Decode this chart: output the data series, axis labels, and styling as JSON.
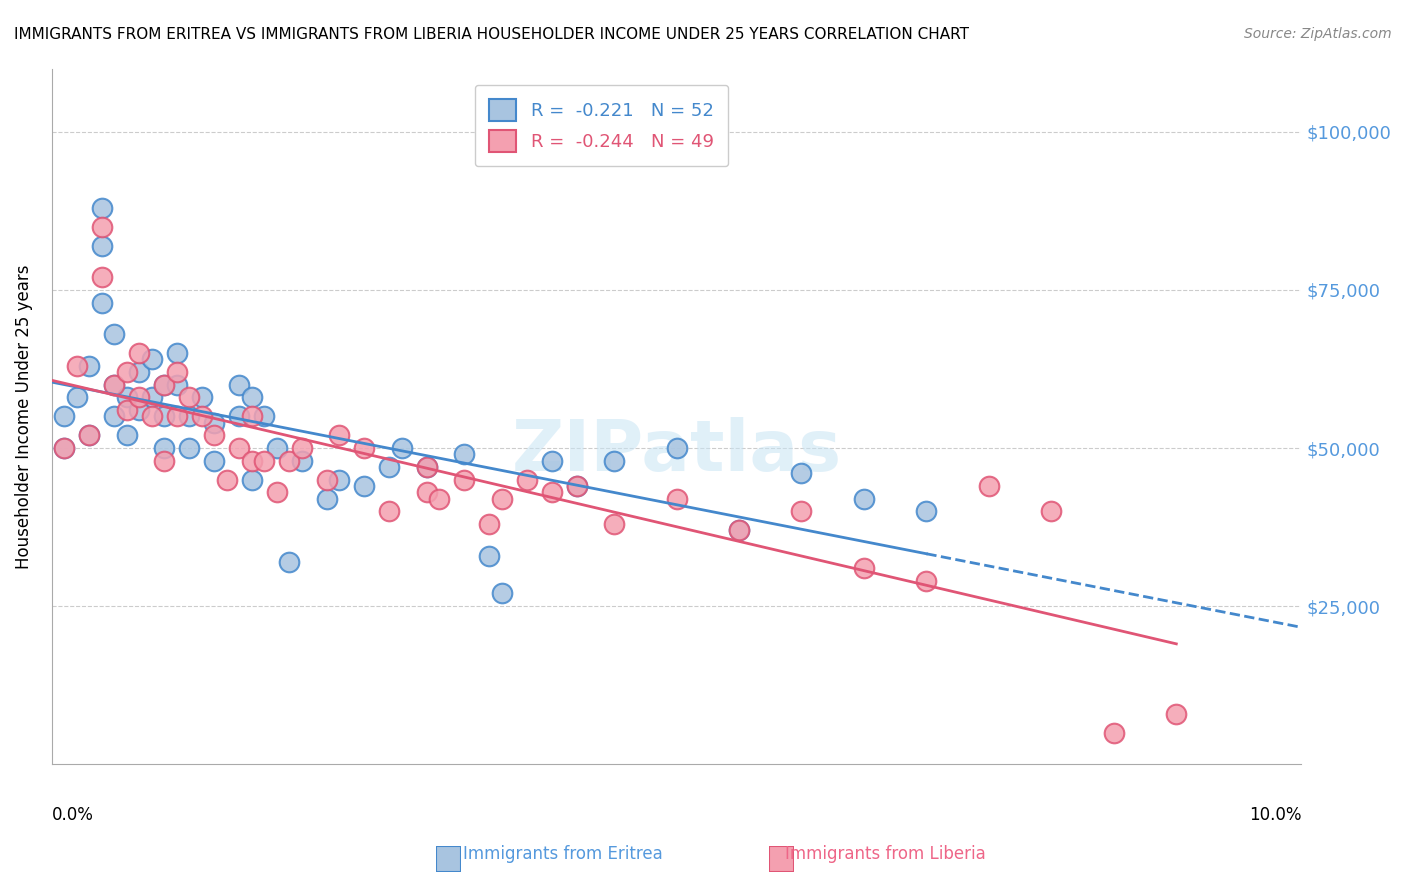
{
  "title": "IMMIGRANTS FROM ERITREA VS IMMIGRANTS FROM LIBERIA HOUSEHOLDER INCOME UNDER 25 YEARS CORRELATION CHART",
  "source": "Source: ZipAtlas.com",
  "ylabel": "Householder Income Under 25 years",
  "ytick_labels": [
    "$25,000",
    "$50,000",
    "$75,000",
    "$100,000"
  ],
  "ytick_values": [
    25000,
    50000,
    75000,
    100000
  ],
  "xlim": [
    0.0,
    0.1
  ],
  "ylim": [
    0,
    110000
  ],
  "legend_eritrea": "R =  -0.221   N = 52",
  "legend_liberia": "R =  -0.244   N = 49",
  "color_eritrea_fill": "#a8c4e0",
  "color_liberia_fill": "#f4a0b0",
  "color_eritrea_line": "#4488cc",
  "color_liberia_line": "#e05575",
  "watermark": "ZIPatlas",
  "eritrea_x": [
    0.001,
    0.001,
    0.002,
    0.003,
    0.003,
    0.004,
    0.004,
    0.004,
    0.005,
    0.005,
    0.005,
    0.006,
    0.006,
    0.007,
    0.007,
    0.008,
    0.008,
    0.009,
    0.009,
    0.009,
    0.01,
    0.01,
    0.011,
    0.011,
    0.012,
    0.013,
    0.013,
    0.015,
    0.015,
    0.016,
    0.016,
    0.017,
    0.018,
    0.019,
    0.02,
    0.022,
    0.023,
    0.025,
    0.027,
    0.028,
    0.03,
    0.033,
    0.035,
    0.036,
    0.04,
    0.042,
    0.045,
    0.05,
    0.055,
    0.06,
    0.065,
    0.07
  ],
  "eritrea_y": [
    55000,
    50000,
    58000,
    63000,
    52000,
    88000,
    82000,
    73000,
    68000,
    60000,
    55000,
    58000,
    52000,
    62000,
    56000,
    64000,
    58000,
    60000,
    55000,
    50000,
    65000,
    60000,
    55000,
    50000,
    58000,
    54000,
    48000,
    60000,
    55000,
    45000,
    58000,
    55000,
    50000,
    32000,
    48000,
    42000,
    45000,
    44000,
    47000,
    50000,
    47000,
    49000,
    33000,
    27000,
    48000,
    44000,
    48000,
    50000,
    37000,
    46000,
    42000,
    40000
  ],
  "liberia_x": [
    0.001,
    0.002,
    0.003,
    0.004,
    0.004,
    0.005,
    0.006,
    0.006,
    0.007,
    0.007,
    0.008,
    0.009,
    0.009,
    0.01,
    0.01,
    0.011,
    0.012,
    0.013,
    0.014,
    0.015,
    0.016,
    0.016,
    0.017,
    0.018,
    0.019,
    0.02,
    0.022,
    0.023,
    0.025,
    0.027,
    0.03,
    0.03,
    0.031,
    0.033,
    0.035,
    0.036,
    0.038,
    0.04,
    0.042,
    0.045,
    0.05,
    0.055,
    0.06,
    0.065,
    0.07,
    0.075,
    0.08,
    0.085,
    0.09
  ],
  "liberia_y": [
    50000,
    63000,
    52000,
    85000,
    77000,
    60000,
    62000,
    56000,
    65000,
    58000,
    55000,
    60000,
    48000,
    62000,
    55000,
    58000,
    55000,
    52000,
    45000,
    50000,
    55000,
    48000,
    48000,
    43000,
    48000,
    50000,
    45000,
    52000,
    50000,
    40000,
    47000,
    43000,
    42000,
    45000,
    38000,
    42000,
    45000,
    43000,
    44000,
    38000,
    42000,
    37000,
    40000,
    31000,
    29000,
    44000,
    40000,
    5000,
    8000
  ]
}
